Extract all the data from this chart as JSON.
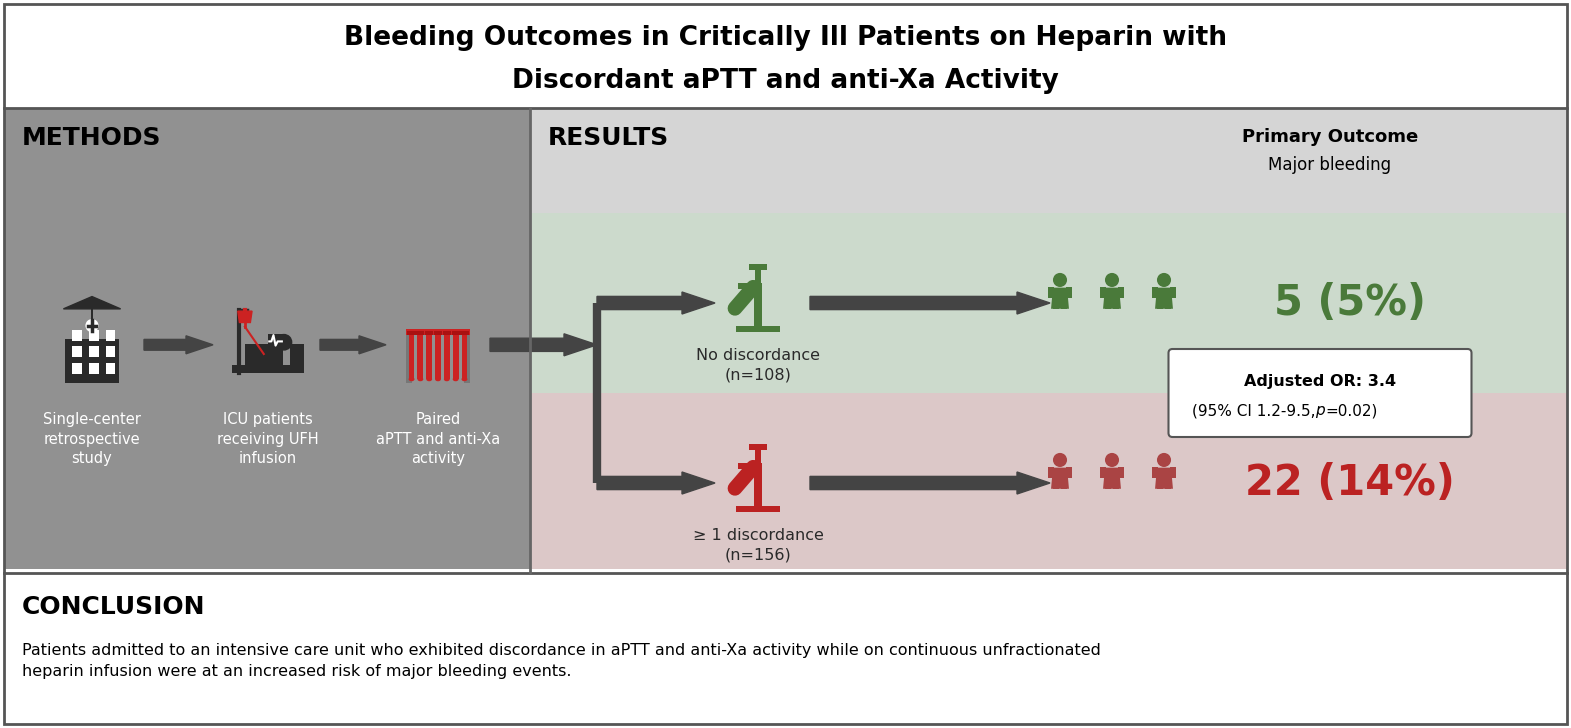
{
  "title_line1": "Bleeding Outcomes in Critically Ill Patients on Heparin with",
  "title_line2": "Discordant aPTT and anti-Xa Activity",
  "methods_label": "METHODS",
  "results_label": "RESULTS",
  "conclusion_label": "CONCLUSION",
  "conclusion_text": "Patients admitted to an intensive care unit who exhibited discordance in aPTT and anti-Xa activity while on continuous unfractionated\nheparin infusion were at an increased risk of major bleeding events.",
  "primary_outcome_bold": "Primary Outcome",
  "primary_outcome_sub": "Major bleeding",
  "step_labels": [
    "Single-center\nretrospective\nstudy",
    "ICU patients\nreceiving UFH\ninfusion",
    "Paired\naPTT and anti-Xa\nactivity"
  ],
  "no_discordance_label": "No discordance\n(n=108)",
  "discordance_label": "≥ 1 discordance\n(n=156)",
  "result_no_discordance": "5 (5%)",
  "result_discordance": "22 (14%)",
  "or_line1": "Adjusted OR: 3.4",
  "or_line2": "(95% CI 1.2-9.5, ιρ=0.02)",
  "or_line2_plain": "(95% CI 1.2-9.5, p=0.02)",
  "bg_methods": "#919191",
  "bg_results_header": "#d5d5d5",
  "bg_results_top": "#ccdacc",
  "bg_results_bottom": "#dcc8c8",
  "color_green": "#4a7a3a",
  "color_red": "#bb2222",
  "color_red_muted": "#aa4444",
  "color_dark": "#2a2a2a",
  "color_arrow": "#444444",
  "color_white": "#ffffff",
  "color_black": "#000000",
  "figw": 15.71,
  "figh": 7.28,
  "dpi": 100
}
